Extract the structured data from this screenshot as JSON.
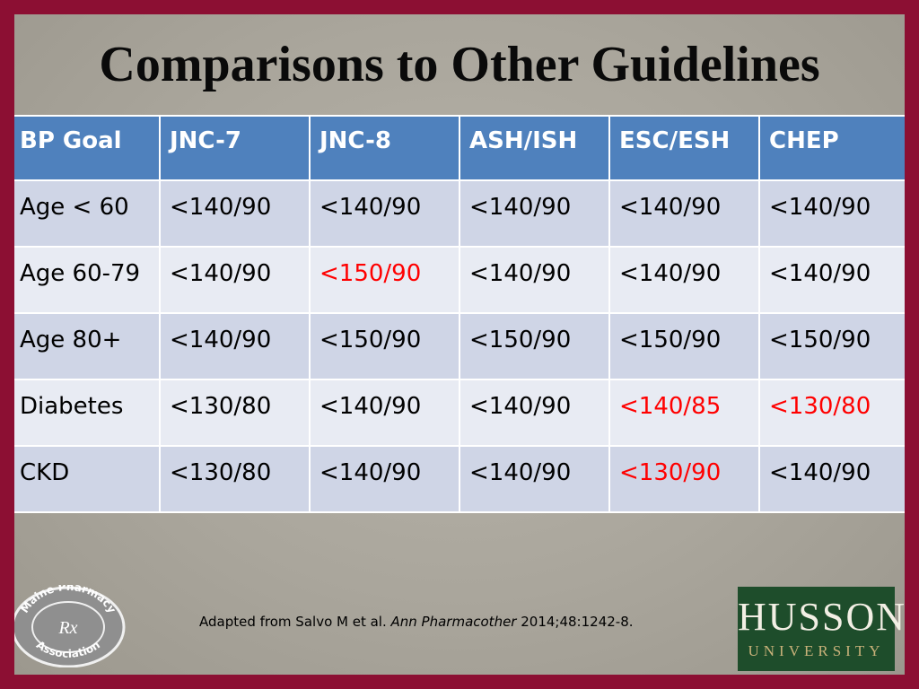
{
  "slide": {
    "title": "Comparisons to Other Guidelines",
    "headline_color": "#ff0000"
  },
  "table": {
    "headers": [
      "BP Goal",
      "JNC-7",
      "JNC-8",
      "ASH/ISH",
      "ESC/ESH",
      "CHEP"
    ],
    "rows": [
      {
        "label": "Age < 60",
        "cells": [
          "<140/90",
          "<140/90",
          "<140/90",
          "<140/90",
          "<140/90"
        ]
      },
      {
        "label": "Age 60-79",
        "cells": [
          "<140/90",
          "<150/90",
          "<140/90",
          "<140/90",
          "<140/90"
        ]
      },
      {
        "label": "Age 80+",
        "cells": [
          "<140/90",
          "<150/90",
          "<150/90",
          "<150/90",
          "<150/90"
        ]
      },
      {
        "label": "Diabetes",
        "cells": [
          "<130/80",
          "<140/90",
          "<140/90",
          "<140/85",
          "<130/80"
        ]
      },
      {
        "label": "CKD",
        "cells": [
          "<130/80",
          "<140/90",
          "<140/90",
          "<130/90",
          "<140/90"
        ]
      }
    ]
  },
  "citation": {
    "prefix": "Adapted from Salvo M et al. ",
    "journal": "Ann Pharmacother",
    "suffix": " 2014;48:1242-8."
  },
  "logos": {
    "left": {
      "text_top": "Maine Pharmacy",
      "text_bottom": "Association",
      "symbol": "Rx"
    },
    "right": {
      "name": "HUSSON",
      "sub": "UNIVERSITY"
    }
  }
}
